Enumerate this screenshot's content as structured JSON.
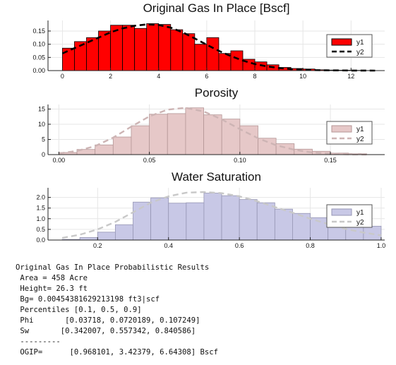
{
  "chart_data": [
    {
      "type": "bar",
      "title": "Original Gas In Place [Bscf]",
      "xlim": [
        -0.6,
        13.4
      ],
      "ylim": [
        0,
        0.19
      ],
      "xticks": [
        "0",
        "2",
        "4",
        "6",
        "8",
        "10",
        "12"
      ],
      "xtick_values": [
        0,
        2,
        4,
        6,
        8,
        10,
        12
      ],
      "yticks": [
        "0.00",
        "0.05",
        "0.10",
        "0.15"
      ],
      "ytick_values": [
        0,
        0.05,
        0.1,
        0.15
      ],
      "grid": true,
      "legend_position": "top-right",
      "colors": {
        "bar_fill": "#ff0000",
        "bar_stroke": "#000000",
        "curve": "#000000"
      },
      "histogram": {
        "name": "y1",
        "bin_edges": [
          0,
          0.5,
          1,
          1.5,
          2,
          2.5,
          3,
          3.5,
          4,
          4.5,
          5,
          5.5,
          6,
          6.5,
          7,
          7.5,
          8,
          8.5,
          9,
          9.5,
          10,
          10.5,
          11,
          11.5,
          12,
          12.5,
          13
        ],
        "values": [
          0.085,
          0.11,
          0.125,
          0.15,
          0.172,
          0.172,
          0.16,
          0.178,
          0.175,
          0.155,
          0.14,
          0.1,
          0.125,
          0.065,
          0.075,
          0.043,
          0.033,
          0.022,
          0.012,
          0.008,
          0.006,
          0.003,
          0.002,
          0.0015,
          0.001,
          0.0005
        ]
      },
      "curve": {
        "name": "y2",
        "dashed": true,
        "x": [
          0,
          0.5,
          1,
          1.5,
          2,
          2.5,
          3,
          3.5,
          4,
          4.5,
          5,
          5.5,
          6,
          6.5,
          7,
          7.5,
          8,
          8.5,
          9,
          9.5,
          10,
          10.5,
          11,
          11.5,
          12,
          12.5,
          13
        ],
        "y": [
          0.065,
          0.085,
          0.105,
          0.125,
          0.145,
          0.16,
          0.17,
          0.175,
          0.173,
          0.163,
          0.145,
          0.122,
          0.098,
          0.075,
          0.055,
          0.038,
          0.025,
          0.016,
          0.01,
          0.006,
          0.004,
          0.002,
          0.0012,
          0.0007,
          0.0004,
          0.0002,
          0.0001
        ]
      }
    },
    {
      "type": "bar",
      "title": "Porosity",
      "xlim": [
        -0.006,
        0.18
      ],
      "ylim": [
        0,
        16.5
      ],
      "xticks": [
        "0.00",
        "0.05",
        "0.10",
        "0.15"
      ],
      "xtick_values": [
        0,
        0.05,
        0.1,
        0.15
      ],
      "yticks": [
        "0",
        "5",
        "10",
        "15"
      ],
      "ytick_values": [
        0,
        5,
        10,
        15
      ],
      "grid": true,
      "legend_position": "top-right",
      "colors": {
        "bar_fill": "#e6c8c8",
        "bar_stroke": "#b49696",
        "curve": "#cdb4b4"
      },
      "histogram": {
        "name": "y1",
        "bin_edges": [
          0,
          0.01,
          0.02,
          0.03,
          0.04,
          0.05,
          0.06,
          0.07,
          0.08,
          0.09,
          0.1,
          0.11,
          0.12,
          0.13,
          0.14,
          0.15,
          0.16,
          0.17
        ],
        "values": [
          0.7,
          1.7,
          3.2,
          5.8,
          9.5,
          13.3,
          13.5,
          15.4,
          13.1,
          11.7,
          9.5,
          5.4,
          3.6,
          1.8,
          1.1,
          0.5,
          0.3
        ]
      },
      "curve": {
        "name": "y2",
        "dashed": true,
        "x": [
          0,
          0.01,
          0.02,
          0.03,
          0.04,
          0.05,
          0.06,
          0.07,
          0.08,
          0.09,
          0.1,
          0.11,
          0.12,
          0.13,
          0.14,
          0.15,
          0.16,
          0.17
        ],
        "y": [
          0.4,
          1.2,
          2.8,
          5.6,
          9.2,
          12.6,
          14.8,
          15.4,
          14.2,
          11.6,
          8.4,
          5.4,
          3.1,
          1.6,
          0.7,
          0.3,
          0.1,
          0.05
        ]
      }
    },
    {
      "type": "bar",
      "title": "Water Saturation",
      "xlim": [
        0.06,
        1.01
      ],
      "ylim": [
        0,
        2.45
      ],
      "xticks": [
        "0.2",
        "0.4",
        "0.6",
        "0.8",
        "1.0"
      ],
      "xtick_values": [
        0.2,
        0.4,
        0.6,
        0.8,
        1.0
      ],
      "yticks": [
        "0.0",
        "0.5",
        "1.0",
        "1.5",
        "2.0"
      ],
      "ytick_values": [
        0,
        0.5,
        1,
        1.5,
        2
      ],
      "grid": true,
      "legend_position": "top-right",
      "colors": {
        "bar_fill": "#c8c8e6",
        "bar_stroke": "#9696b4",
        "curve": "#c8c8c8"
      },
      "histogram": {
        "name": "y1",
        "bin_edges": [
          0.1,
          0.15,
          0.2,
          0.25,
          0.3,
          0.35,
          0.4,
          0.45,
          0.5,
          0.55,
          0.6,
          0.65,
          0.7,
          0.75,
          0.8,
          0.85,
          0.9,
          0.95,
          1.0
        ],
        "values": [
          0.03,
          0.12,
          0.37,
          0.72,
          1.78,
          1.98,
          1.73,
          1.75,
          2.2,
          2.08,
          1.9,
          1.75,
          1.45,
          1.25,
          1.05,
          0.95,
          0.78,
          0.65
        ]
      },
      "curve": {
        "name": "y2",
        "dashed": true,
        "x": [
          0.1,
          0.15,
          0.2,
          0.25,
          0.3,
          0.35,
          0.4,
          0.45,
          0.5,
          0.55,
          0.6,
          0.65,
          0.7,
          0.75,
          0.8,
          0.85,
          0.9,
          0.95,
          1.0
        ],
        "y": [
          0.1,
          0.25,
          0.5,
          0.85,
          1.3,
          1.75,
          2.05,
          2.22,
          2.25,
          2.2,
          2.05,
          1.82,
          1.55,
          1.28,
          1.0,
          0.75,
          0.52,
          0.35,
          0.22
        ]
      }
    }
  ],
  "results": {
    "heading": "Original Gas In Place Probabilistic Results",
    "lines": [
      " Area = 458 Acre",
      " Height= 26.3 ft",
      " Bg= 0.00454381629213198 ft3|scf",
      " Percentiles [0.1, 0.5, 0.9]",
      " Phi       [0.03718, 0.0720189, 0.107249]",
      " Sw       [0.342007, 0.557342, 0.840586]",
      " ---------",
      " OGIP=      [0.968101, 3.42379, 6.64308] Bscf"
    ]
  }
}
